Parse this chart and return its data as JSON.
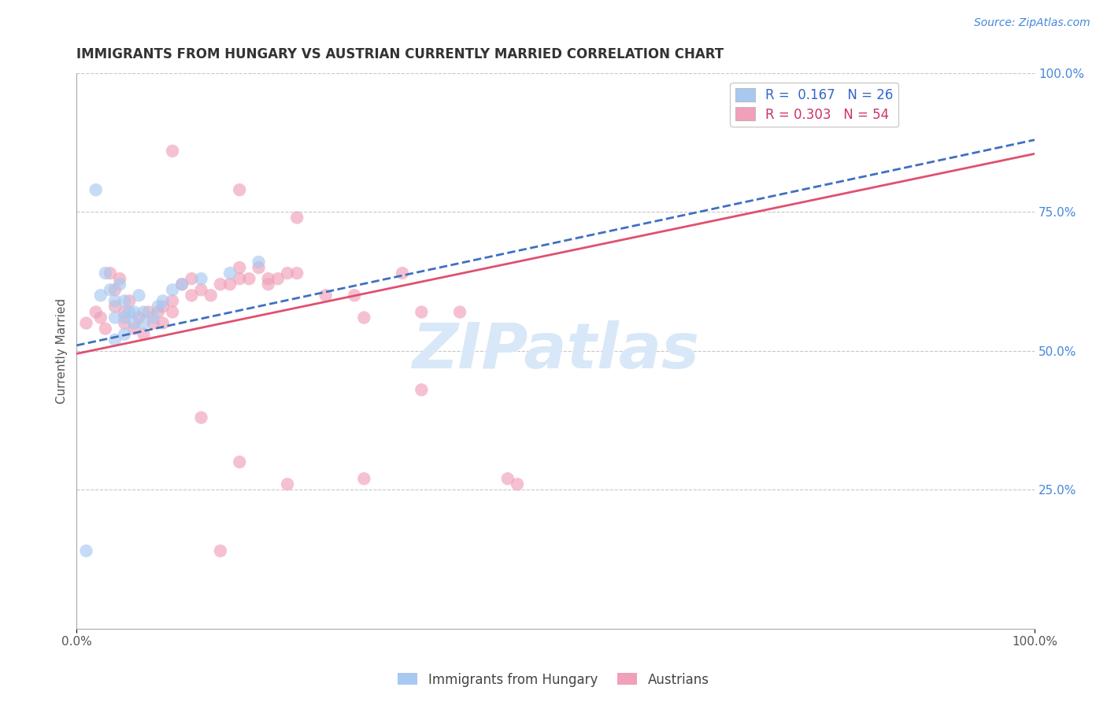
{
  "title": "IMMIGRANTS FROM HUNGARY VS AUSTRIAN CURRENTLY MARRIED CORRELATION CHART",
  "source_text": "Source: ZipAtlas.com",
  "ylabel": "Currently Married",
  "xlim": [
    0.0,
    1.0
  ],
  "ylim": [
    0.0,
    1.0
  ],
  "legend_r1": "R =  0.167   N = 26",
  "legend_r2": "R = 0.303   N = 54",
  "blue_color": "#A8C8F0",
  "pink_color": "#F0A0B8",
  "blue_line_color": "#4070C0",
  "pink_line_color": "#E05070",
  "grid_color": "#C8C8C8",
  "watermark_color": "#D8E8F8",
  "blue_scatter_x": [
    0.01,
    0.02,
    0.025,
    0.03,
    0.035,
    0.04,
    0.04,
    0.045,
    0.05,
    0.05,
    0.05,
    0.055,
    0.06,
    0.06,
    0.065,
    0.07,
    0.07,
    0.08,
    0.085,
    0.09,
    0.1,
    0.11,
    0.13,
    0.16,
    0.19,
    0.04
  ],
  "blue_scatter_y": [
    0.14,
    0.79,
    0.6,
    0.64,
    0.61,
    0.56,
    0.59,
    0.62,
    0.53,
    0.56,
    0.59,
    0.57,
    0.55,
    0.57,
    0.6,
    0.55,
    0.57,
    0.56,
    0.58,
    0.59,
    0.61,
    0.62,
    0.63,
    0.64,
    0.66,
    0.52
  ],
  "pink_scatter_x": [
    0.01,
    0.02,
    0.025,
    0.03,
    0.035,
    0.04,
    0.04,
    0.045,
    0.05,
    0.05,
    0.055,
    0.06,
    0.065,
    0.07,
    0.075,
    0.08,
    0.085,
    0.09,
    0.09,
    0.1,
    0.1,
    0.11,
    0.12,
    0.12,
    0.13,
    0.14,
    0.15,
    0.16,
    0.17,
    0.17,
    0.18,
    0.19,
    0.2,
    0.21,
    0.22,
    0.23,
    0.26,
    0.29,
    0.3,
    0.34,
    0.36,
    0.4,
    0.1,
    0.17,
    0.2,
    0.23,
    0.36,
    0.45,
    0.13,
    0.17,
    0.22,
    0.3,
    0.46,
    0.15
  ],
  "pink_scatter_y": [
    0.55,
    0.57,
    0.56,
    0.54,
    0.64,
    0.61,
    0.58,
    0.63,
    0.55,
    0.57,
    0.59,
    0.54,
    0.56,
    0.53,
    0.57,
    0.55,
    0.57,
    0.55,
    0.58,
    0.57,
    0.59,
    0.62,
    0.6,
    0.63,
    0.61,
    0.6,
    0.62,
    0.62,
    0.63,
    0.65,
    0.63,
    0.65,
    0.62,
    0.63,
    0.64,
    0.64,
    0.6,
    0.6,
    0.56,
    0.64,
    0.57,
    0.57,
    0.86,
    0.79,
    0.63,
    0.74,
    0.43,
    0.27,
    0.38,
    0.3,
    0.26,
    0.27,
    0.26,
    0.14
  ],
  "blue_line_x0": 0.0,
  "blue_line_y0": 0.51,
  "blue_line_x1": 1.0,
  "blue_line_y1": 0.88,
  "pink_line_x0": 0.0,
  "pink_line_y0": 0.495,
  "pink_line_x1": 1.0,
  "pink_line_y1": 0.855,
  "watermark": "ZIPatlas"
}
